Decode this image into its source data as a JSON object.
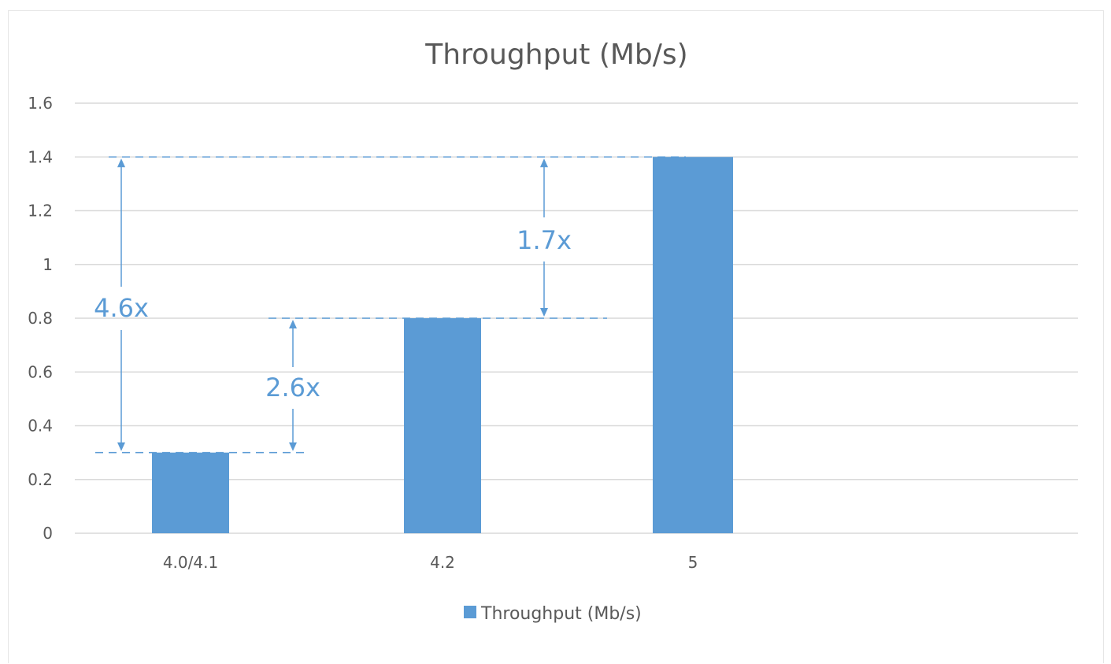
{
  "chart_data": {
    "type": "bar",
    "title": "Throughput (Mb/s)",
    "xlabel": "",
    "ylabel": "",
    "categories": [
      "4.0/4.1",
      "4.2",
      "5"
    ],
    "series": [
      {
        "name": "Throughput (Mb/s)",
        "values": [
          0.3,
          0.8,
          1.4
        ]
      }
    ],
    "ylim": [
      0,
      1.6
    ],
    "yticks": [
      "0",
      "0.2",
      "0.4",
      "0.6",
      "0.8",
      "1",
      "1.2",
      "1.4",
      "1.6"
    ],
    "grid": true,
    "legend_position": "bottom",
    "bar_color": "#5b9bd5",
    "annotation_color": "#5b9bd5",
    "annotations": [
      {
        "label": "4.6x",
        "from": 0.3,
        "to": 1.4
      },
      {
        "label": "2.6x",
        "from": 0.3,
        "to": 0.8
      },
      {
        "label": "1.7x",
        "from": 0.8,
        "to": 1.4
      }
    ]
  }
}
